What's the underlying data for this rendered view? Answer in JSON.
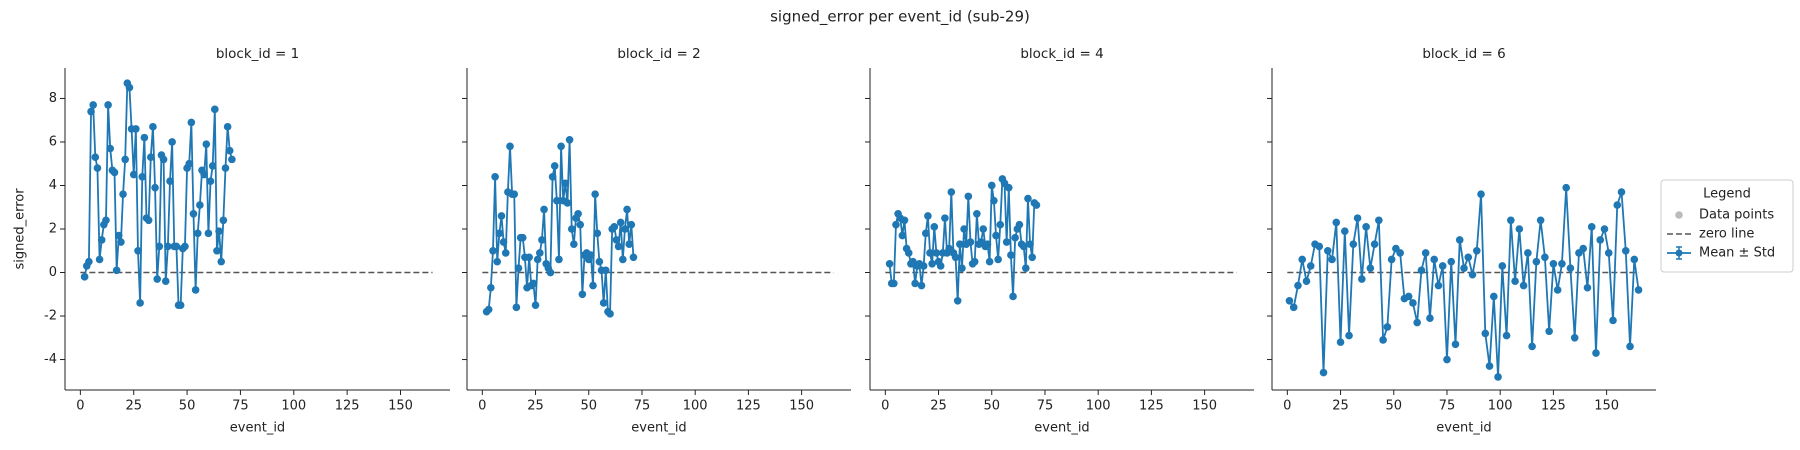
{
  "figure": {
    "title": "signed_error per event_id (sub-29)",
    "legend": {
      "title": "Legend",
      "entries": [
        {
          "name": "Data points",
          "color": "#bbbbbb",
          "style": "marker"
        },
        {
          "name": "zero line",
          "color": "#555555",
          "style": "dashed"
        },
        {
          "name": "Mean ± Std",
          "color": "#1f77b4",
          "style": "errorbar"
        }
      ]
    }
  },
  "chart_data": [
    {
      "type": "line",
      "title": "block_id = 1",
      "xlabel": "event_id",
      "ylabel": "signed_error",
      "xlim": [
        -7.2,
        173.2
      ],
      "ylim": [
        -5.4,
        9.4
      ],
      "xticks": [
        0,
        25,
        50,
        75,
        100,
        125,
        150
      ],
      "yticks": [
        -4,
        -2,
        0,
        2,
        4,
        6,
        8
      ],
      "show_ytick_labels": true,
      "reference_line": {
        "value": 0,
        "x": [
          0,
          165
        ],
        "color": "#555555"
      },
      "series": [
        {
          "color": "#1f77b4",
          "x": [
            2,
            3,
            4,
            5,
            6,
            7,
            8,
            9,
            10,
            11,
            12,
            13,
            14,
            15,
            16,
            17,
            18,
            19,
            20,
            21,
            22,
            23,
            24,
            25,
            26,
            27,
            28,
            29,
            30,
            31,
            32,
            33,
            34,
            35,
            36,
            37,
            38,
            39,
            40,
            41,
            42,
            43,
            44,
            45,
            46,
            47,
            48,
            49,
            50,
            51,
            52,
            53,
            54,
            55,
            56,
            57,
            58,
            59,
            60,
            61,
            62,
            63,
            64,
            65,
            66,
            67,
            68,
            69,
            70,
            71
          ],
          "values": [
            -0.2,
            0.3,
            0.5,
            7.4,
            7.7,
            5.3,
            4.8,
            0.6,
            1.5,
            2.2,
            2.4,
            7.7,
            5.7,
            4.7,
            4.6,
            0.1,
            1.7,
            1.4,
            3.6,
            5.2,
            8.7,
            8.5,
            6.6,
            4.5,
            6.6,
            1.0,
            -1.4,
            4.4,
            6.2,
            2.5,
            2.4,
            5.3,
            6.7,
            3.9,
            -0.3,
            1.2,
            5.4,
            5.2,
            -0.4,
            1.2,
            4.2,
            6.0,
            1.2,
            1.2,
            -1.5,
            -1.5,
            1.1,
            1.2,
            4.8,
            5.0,
            6.9,
            2.7,
            -0.8,
            1.8,
            3.1,
            4.7,
            4.5,
            5.9,
            1.8,
            4.2,
            4.9,
            7.5,
            1.0,
            1.9,
            0.5,
            2.4,
            4.8,
            6.7,
            5.6,
            5.2
          ]
        }
      ]
    },
    {
      "type": "line",
      "title": "block_id = 2",
      "xlabel": "event_id",
      "xlim": [
        -7.2,
        173.2
      ],
      "ylim": [
        -5.4,
        9.4
      ],
      "xticks": [
        0,
        25,
        50,
        75,
        100,
        125,
        150
      ],
      "yticks": [
        -4,
        -2,
        0,
        2,
        4,
        6,
        8
      ],
      "show_ytick_labels": false,
      "reference_line": {
        "value": 0,
        "x": [
          0,
          165
        ],
        "color": "#555555"
      },
      "series": [
        {
          "color": "#1f77b4",
          "x": [
            2,
            3,
            4,
            5,
            6,
            7,
            8,
            9,
            10,
            11,
            12,
            13,
            14,
            15,
            16,
            17,
            18,
            19,
            20,
            21,
            22,
            23,
            24,
            25,
            26,
            27,
            28,
            29,
            30,
            31,
            32,
            33,
            34,
            35,
            36,
            37,
            38,
            39,
            40,
            41,
            42,
            43,
            44,
            45,
            46,
            47,
            48,
            49,
            50,
            51,
            52,
            53,
            54,
            55,
            56,
            57,
            58,
            59,
            60,
            61,
            62,
            63,
            64,
            65,
            66,
            67,
            68,
            69,
            70,
            71
          ],
          "values": [
            -1.8,
            -1.7,
            -0.7,
            1.0,
            4.4,
            0.5,
            1.8,
            2.6,
            1.4,
            0.9,
            3.7,
            5.8,
            3.6,
            3.6,
            -1.6,
            0.2,
            1.6,
            1.6,
            0.7,
            -0.7,
            0.7,
            -0.6,
            -0.5,
            -1.5,
            0.6,
            0.9,
            1.5,
            2.9,
            0.4,
            0.2,
            0.0,
            4.4,
            4.9,
            3.3,
            0.6,
            5.8,
            3.3,
            4.1,
            3.2,
            6.1,
            2.0,
            1.3,
            2.5,
            2.7,
            2.2,
            -1.0,
            0.8,
            0.9,
            0.6,
            0.8,
            -0.6,
            3.6,
            1.8,
            0.5,
            0.1,
            -1.4,
            0.1,
            -1.8,
            -1.9,
            2.0,
            2.1,
            1.5,
            1.2,
            2.3,
            0.6,
            2.0,
            2.9,
            1.3,
            2.2,
            0.7
          ]
        }
      ]
    },
    {
      "type": "line",
      "title": "block_id = 4",
      "xlabel": "event_id",
      "xlim": [
        -7.2,
        173.2
      ],
      "ylim": [
        -5.4,
        9.4
      ],
      "xticks": [
        0,
        25,
        50,
        75,
        100,
        125,
        150
      ],
      "yticks": [
        -4,
        -2,
        0,
        2,
        4,
        6,
        8
      ],
      "show_ytick_labels": false,
      "reference_line": {
        "value": 0,
        "x": [
          0,
          165
        ],
        "color": "#555555"
      },
      "series": [
        {
          "color": "#1f77b4",
          "x": [
            2,
            3,
            4,
            5,
            6,
            7,
            8,
            9,
            10,
            11,
            12,
            13,
            14,
            15,
            16,
            17,
            18,
            19,
            20,
            21,
            22,
            23,
            24,
            25,
            26,
            27,
            28,
            29,
            30,
            31,
            32,
            33,
            34,
            35,
            36,
            37,
            38,
            39,
            40,
            41,
            42,
            43,
            44,
            45,
            46,
            47,
            48,
            49,
            50,
            51,
            52,
            53,
            54,
            55,
            56,
            57,
            58,
            59,
            60,
            61,
            62,
            63,
            64,
            65,
            66,
            67,
            68,
            69,
            70,
            71
          ],
          "values": [
            0.4,
            -0.5,
            -0.5,
            2.2,
            2.7,
            2.5,
            1.7,
            2.4,
            1.1,
            0.9,
            0.4,
            0.5,
            -0.5,
            0.3,
            0.4,
            -0.6,
            0.3,
            1.8,
            2.6,
            0.9,
            0.4,
            2.1,
            0.9,
            0.5,
            0.3,
            0.9,
            2.5,
            0.9,
            1.1,
            3.7,
            0.9,
            0.7,
            -1.3,
            1.3,
            0.2,
            2.0,
            1.3,
            3.5,
            1.4,
            0.4,
            0.5,
            2.7,
            1.3,
            1.4,
            2.0,
            1.2,
            1.3,
            0.5,
            4.0,
            3.3,
            1.7,
            0.6,
            2.2,
            4.3,
            4.1,
            1.4,
            3.9,
            0.8,
            -1.1,
            1.6,
            2.0,
            2.2,
            1.3,
            1.2,
            0.2,
            3.4,
            1.3,
            0.7,
            3.2,
            3.1
          ]
        }
      ]
    },
    {
      "type": "line",
      "title": "block_id = 6",
      "xlabel": "event_id",
      "xlim": [
        -7.2,
        173.2
      ],
      "ylim": [
        -5.4,
        9.4
      ],
      "xticks": [
        0,
        25,
        50,
        75,
        100,
        125,
        150
      ],
      "yticks": [
        -4,
        -2,
        0,
        2,
        4,
        6,
        8
      ],
      "show_ytick_labels": false,
      "reference_line": {
        "value": 0,
        "x": [
          0,
          165
        ],
        "color": "#555555"
      },
      "series": [
        {
          "color": "#1f77b4",
          "x": [
            1,
            3,
            5,
            7,
            9,
            11,
            13,
            15,
            17,
            19,
            21,
            23,
            25,
            27,
            29,
            31,
            33,
            35,
            37,
            39,
            41,
            43,
            45,
            47,
            49,
            51,
            53,
            55,
            57,
            59,
            61,
            63,
            65,
            67,
            69,
            71,
            73,
            75,
            77,
            79,
            81,
            83,
            85,
            87,
            89,
            91,
            93,
            95,
            97,
            99,
            101,
            103,
            105,
            107,
            109,
            111,
            113,
            115,
            117,
            119,
            121,
            123,
            125,
            127,
            129,
            131,
            133,
            135,
            137,
            139,
            141,
            143,
            145,
            147,
            149,
            151,
            153,
            155,
            157,
            159,
            161,
            163,
            165
          ],
          "values": [
            -1.3,
            -1.6,
            -0.6,
            0.6,
            -0.4,
            0.3,
            1.3,
            1.2,
            -4.6,
            1.0,
            0.6,
            2.3,
            -3.2,
            1.9,
            -2.9,
            1.3,
            2.5,
            -0.3,
            2.1,
            0.2,
            1.3,
            2.4,
            -3.1,
            -2.5,
            0.6,
            1.1,
            0.9,
            -1.2,
            -1.1,
            -1.4,
            -2.3,
            0.1,
            0.9,
            -2.1,
            0.6,
            -0.6,
            0.3,
            -4.0,
            0.5,
            -3.3,
            1.5,
            0.2,
            0.7,
            -0.1,
            1.0,
            3.6,
            -2.8,
            -4.3,
            -1.1,
            -4.8,
            0.3,
            -2.9,
            2.4,
            -0.4,
            2.0,
            -0.6,
            0.9,
            -3.4,
            0.5,
            2.4,
            0.7,
            -2.7,
            0.4,
            -0.8,
            0.4,
            3.9,
            0.2,
            -3.0,
            0.9,
            1.1,
            -0.7,
            2.1,
            -3.7,
            1.5,
            2.0,
            0.9,
            -2.2,
            3.1,
            3.7,
            1.0,
            -3.4,
            0.6,
            -0.8
          ]
        }
      ]
    }
  ]
}
